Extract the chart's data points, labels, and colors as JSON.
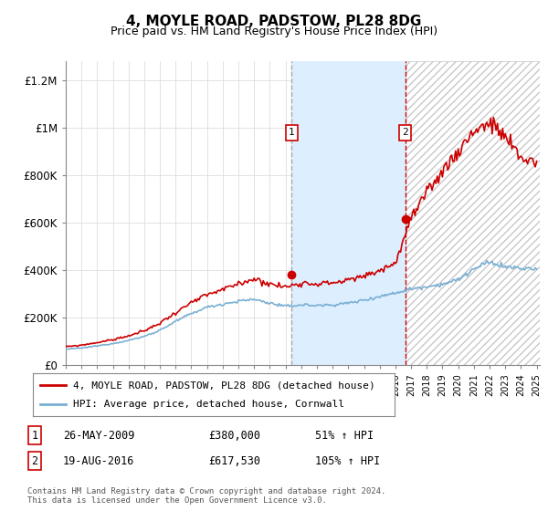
{
  "title": "4, MOYLE ROAD, PADSTOW, PL28 8DG",
  "subtitle": "Price paid vs. HM Land Registry's House Price Index (HPI)",
  "title_fontsize": 11,
  "subtitle_fontsize": 9,
  "ylabel_ticks": [
    "£0",
    "£200K",
    "£400K",
    "£600K",
    "£800K",
    "£1M",
    "£1.2M"
  ],
  "ytick_values": [
    0,
    200000,
    400000,
    600000,
    800000,
    1000000,
    1200000
  ],
  "ylim": [
    0,
    1280000
  ],
  "xlim_start": 1995.0,
  "xlim_end": 2025.2,
  "transaction1_date": 2009.4,
  "transaction1_price": 380000,
  "transaction1_label": "1",
  "transaction1_text": "26-MAY-2009",
  "transaction1_price_str": "£380,000",
  "transaction1_hpi_str": "51% ↑ HPI",
  "transaction2_date": 2016.63,
  "transaction2_price": 617530,
  "transaction2_label": "2",
  "transaction2_text": "19-AUG-2016",
  "transaction2_price_str": "£617,530",
  "transaction2_hpi_str": "105% ↑ HPI",
  "red_line_color": "#cc0000",
  "blue_line_color": "#7aafd4",
  "shading_color": "#ddeeff",
  "legend_label_red": "4, MOYLE ROAD, PADSTOW, PL28 8DG (detached house)",
  "legend_label_blue": "HPI: Average price, detached house, Cornwall",
  "footnote": "Contains HM Land Registry data © Crown copyright and database right 2024.\nThis data is licensed under the Open Government Licence v3.0."
}
